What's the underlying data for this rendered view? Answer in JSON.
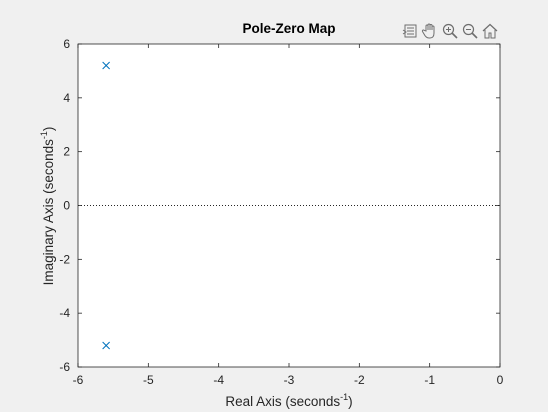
{
  "window": {
    "background": "#f0f0f0"
  },
  "toolbar": {
    "buttons": [
      {
        "name": "export-icon"
      },
      {
        "name": "pan-icon"
      },
      {
        "name": "zoom-in-icon"
      },
      {
        "name": "zoom-out-icon"
      },
      {
        "name": "home-icon"
      }
    ]
  },
  "chart_data": {
    "type": "scatter",
    "title": "Pole-Zero Map",
    "xlabel": "Real Axis (seconds",
    "ylabel": "Imaginary Axis (seconds",
    "label_exponent": "-1",
    "label_suffix": ")",
    "xlim": [
      -6,
      0
    ],
    "ylim": [
      -6,
      6
    ],
    "xticks": [
      -6,
      -5,
      -4,
      -3,
      -2,
      -1,
      0
    ],
    "yticks": [
      -6,
      -4,
      -2,
      0,
      2,
      4,
      6
    ],
    "grid": false,
    "reference_line": {
      "y": 0,
      "style": "dotted"
    },
    "marker": "x",
    "marker_color": "#0072bd",
    "poles": [
      {
        "x": -5.6,
        "y": 5.2
      },
      {
        "x": -5.6,
        "y": -5.2
      }
    ],
    "zeros": []
  }
}
